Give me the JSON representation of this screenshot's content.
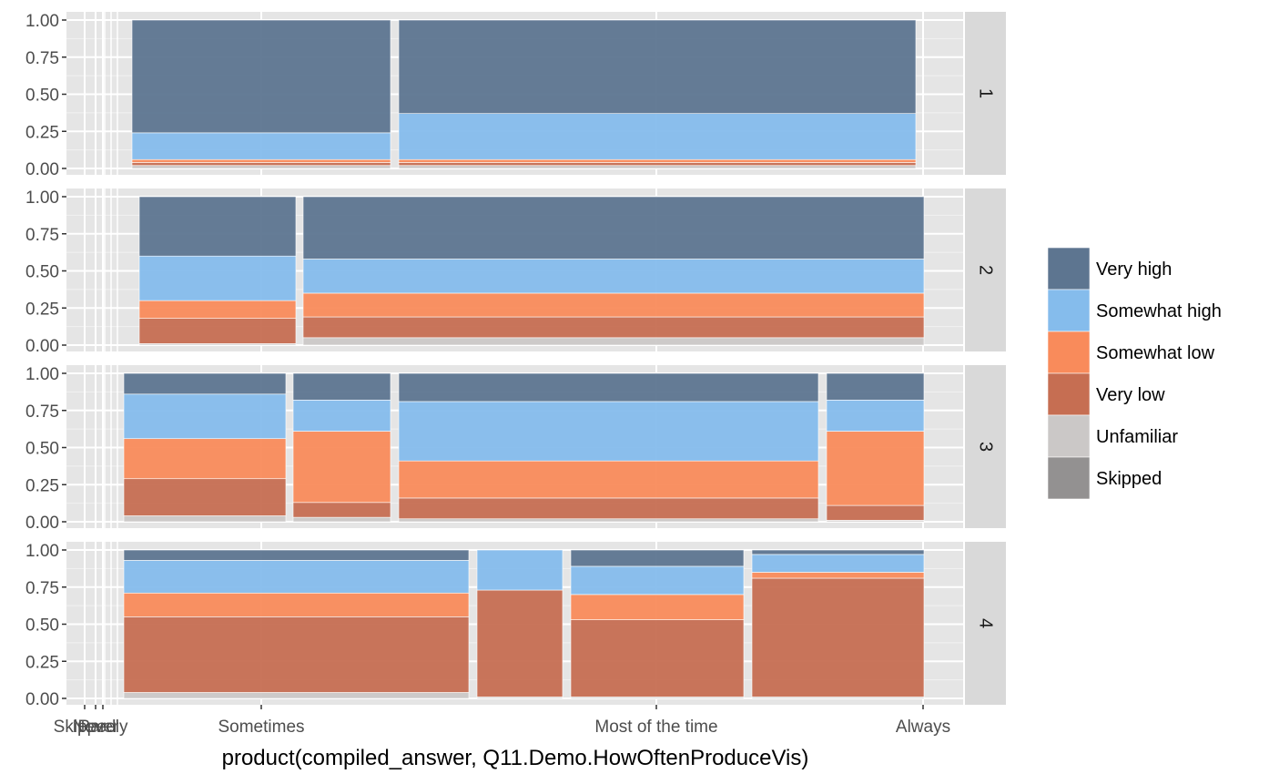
{
  "chart_data": {
    "type": "bar",
    "subtype": "mosaic (faceted, stacked proportions; bar widths proportional to group size)",
    "xlabel": "product(compiled_answer, Q11.Demo.HowOftenProduceVis)",
    "ylabel": "",
    "ylim": [
      0,
      1
    ],
    "y_ticks": [
      "0.00",
      "0.25",
      "0.50",
      "0.75",
      "1.00"
    ],
    "x_tick_labels": [
      "Skipped",
      "Never",
      "Rarely",
      "Sometimes",
      "Most of the time",
      "Always"
    ],
    "grid": true,
    "legend_position": "right",
    "legend": [
      "Very high",
      "Somewhat high",
      "Somewhat low",
      "Very low",
      "Unfamiliar",
      "Skipped"
    ],
    "colors": {
      "Very high": "#5d7590",
      "Somewhat high": "#85bcec",
      "Somewhat low": "#f98b5b",
      "Very low": "#c66e52",
      "Unfamiliar": "#cbc8c7",
      "Skipped": "#939191",
      "panel_bg": "#e5e5e5",
      "strip_bg": "#d9d9d9"
    },
    "stack_order_bottom_to_top": [
      "Skipped",
      "Unfamiliar",
      "Very low",
      "Somewhat low",
      "Somewhat high",
      "Very high"
    ],
    "facets": [
      {
        "label": "1",
        "bars": [
          {
            "x": "Sometimes",
            "width_share": 0.33,
            "values": [
              0.0,
              0.02,
              0.02,
              0.02,
              0.18,
              0.76
            ]
          },
          {
            "x": "Most of the time",
            "width_share": 0.67,
            "values": [
              0.0,
              0.02,
              0.02,
              0.02,
              0.31,
              0.63
            ]
          }
        ]
      },
      {
        "label": "2",
        "bars": [
          {
            "x": "Sometimes",
            "width_share": 0.2,
            "values": [
              0.0,
              0.01,
              0.17,
              0.12,
              0.3,
              0.4
            ]
          },
          {
            "x": "Most of the time",
            "width_share": 0.8,
            "values": [
              0.0,
              0.05,
              0.14,
              0.16,
              0.23,
              0.42
            ]
          }
        ]
      },
      {
        "label": "3",
        "bars": [
          {
            "x": "Rarely",
            "width_share": 0.2,
            "values": [
              0.0,
              0.04,
              0.25,
              0.27,
              0.3,
              0.14
            ]
          },
          {
            "x": "Sometimes",
            "width_share": 0.12,
            "values": [
              0.0,
              0.03,
              0.1,
              0.48,
              0.21,
              0.18
            ]
          },
          {
            "x": "Most of the time",
            "width_share": 0.56,
            "values": [
              0.0,
              0.02,
              0.14,
              0.25,
              0.4,
              0.19
            ]
          },
          {
            "x": "Always",
            "width_share": 0.12,
            "values": [
              0.0,
              0.01,
              0.1,
              0.5,
              0.21,
              0.18
            ]
          }
        ]
      },
      {
        "label": "4",
        "bars": [
          {
            "x": "Rarely",
            "width_share": 0.43,
            "values": [
              0.0,
              0.04,
              0.51,
              0.16,
              0.22,
              0.07
            ]
          },
          {
            "x": "Sometimes",
            "width_share": 0.11,
            "values": [
              0.0,
              0.01,
              0.72,
              0.0,
              0.27,
              0.0
            ]
          },
          {
            "x": "Most of the time",
            "width_share": 0.22,
            "values": [
              0.0,
              0.01,
              0.52,
              0.17,
              0.19,
              0.11
            ]
          },
          {
            "x": "Always",
            "width_share": 0.22,
            "values": [
              0.0,
              0.01,
              0.8,
              0.04,
              0.12,
              0.03
            ]
          }
        ]
      }
    ]
  }
}
